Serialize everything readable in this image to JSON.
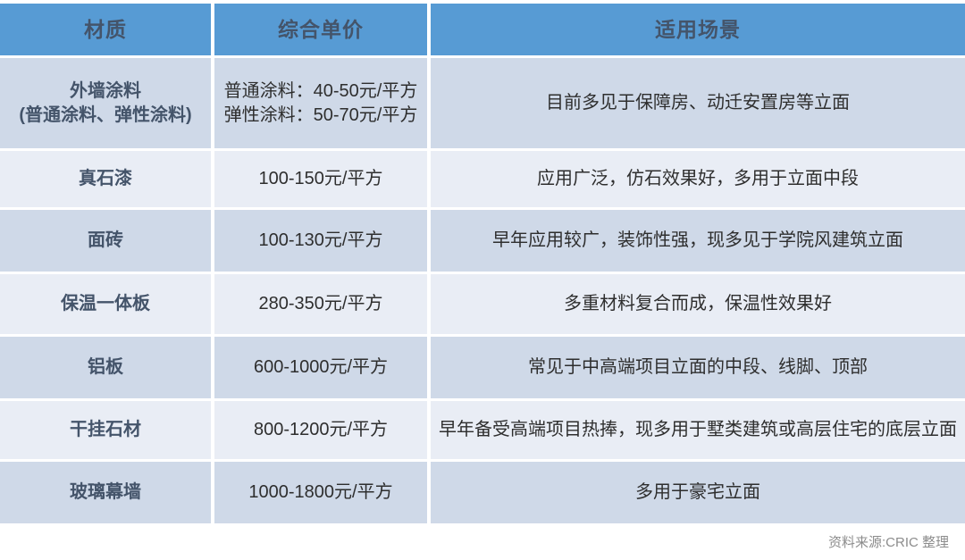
{
  "colors": {
    "header_bg": "#579bd4",
    "header_text": "#44546a",
    "row_dark_bg": "#cfd9e8",
    "row_light_bg": "#e9edf5",
    "material_text": "#44546a",
    "body_text": "#2e2e2e",
    "footer_text": "#8c8c8c"
  },
  "chart_data": {
    "type": "table",
    "title": "",
    "columns": [
      "材质",
      "综合单价",
      "适用场景"
    ],
    "rows": [
      {
        "material": "外墙涂料",
        "material_sub": "(普通涂料、弹性涂料)",
        "price": "普通涂料：40-50元/平方",
        "price2": "弹性涂料：50-70元/平方",
        "price_range_yuan_per_sqm_normal": [
          40,
          50
        ],
        "price_range_yuan_per_sqm_elastic": [
          50,
          70
        ],
        "scenario": "目前多见于保障房、动迁安置房等立面"
      },
      {
        "material": "真石漆",
        "material_sub": "",
        "price": "100-150元/平方",
        "price2": "",
        "price_range_yuan_per_sqm": [
          100,
          150
        ],
        "scenario": "应用广泛，仿石效果好，多用于立面中段"
      },
      {
        "material": "面砖",
        "material_sub": "",
        "price": "100-130元/平方",
        "price2": "",
        "price_range_yuan_per_sqm": [
          100,
          130
        ],
        "scenario": "早年应用较广，装饰性强，现多见于学院风建筑立面"
      },
      {
        "material": "保温一体板",
        "material_sub": "",
        "price": "280-350元/平方",
        "price2": "",
        "price_range_yuan_per_sqm": [
          280,
          350
        ],
        "scenario": "多重材料复合而成，保温性效果好"
      },
      {
        "material": "铝板",
        "material_sub": "",
        "price": "600-1000元/平方",
        "price2": "",
        "price_range_yuan_per_sqm": [
          600,
          1000
        ],
        "scenario": "常见于中高端项目立面的中段、线脚、顶部"
      },
      {
        "material": "干挂石材",
        "material_sub": "",
        "price": "800-1200元/平方",
        "price2": "",
        "price_range_yuan_per_sqm": [
          800,
          1200
        ],
        "scenario": "早年备受高端项目热捧，现多用于墅类建筑或高层住宅的底层立面"
      },
      {
        "material": "玻璃幕墙",
        "material_sub": "",
        "price": "1000-1800元/平方",
        "price2": "",
        "price_range_yuan_per_sqm": [
          1000,
          1800
        ],
        "scenario": "多用于豪宅立面"
      }
    ],
    "source_note": "资料来源:CRIC 整理",
    "legend_position": "none",
    "grid": "banded-rows"
  }
}
